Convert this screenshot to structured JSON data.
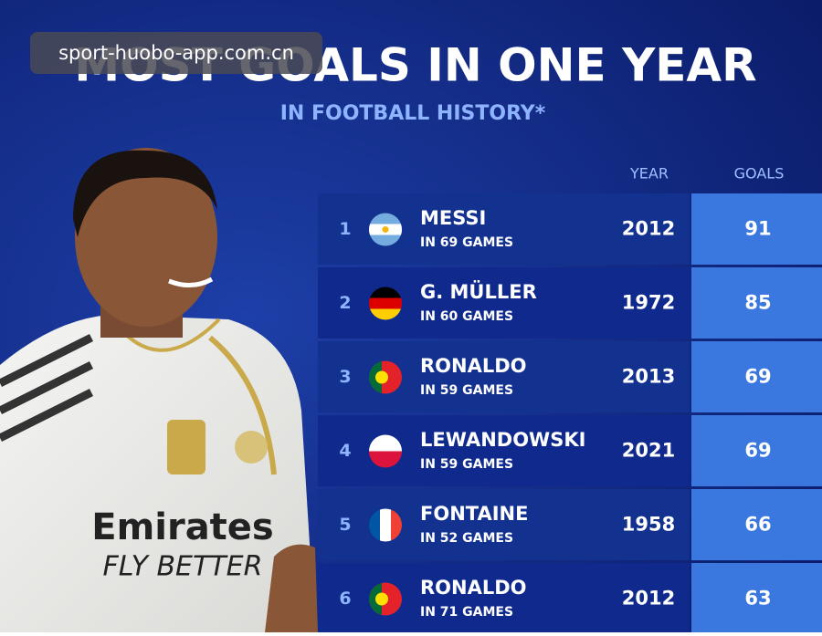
{
  "watermark": "sport-huobo-app.com.cn",
  "header": {
    "title": "MOST GOALS IN ONE YEAR",
    "subtitle": "IN FOOTBALL HISTORY*"
  },
  "table": {
    "columns": [
      "YEAR",
      "GOALS"
    ],
    "rows": [
      {
        "rank": 1,
        "name": "MESSI",
        "games": "IN 69 GAMES",
        "year": 2012,
        "goals": 91
      },
      {
        "rank": 2,
        "name": "G. MÜLLER",
        "games": "IN 60 GAMES",
        "year": 1972,
        "goals": 85
      },
      {
        "rank": 3,
        "name": "RONALDO",
        "games": "IN 59 GAMES",
        "year": 2013,
        "goals": 69
      },
      {
        "rank": 4,
        "name": "LEWANDOWSKI",
        "games": "IN 59 GAMES",
        "year": 2021,
        "goals": 69
      },
      {
        "rank": 5,
        "name": "FONTAINE",
        "games": "IN 52 GAMES",
        "year": 1958,
        "goals": 66
      },
      {
        "rank": 6,
        "name": "RONALDO",
        "games": "IN 71 GAMES",
        "year": 2012,
        "goals": 63
      }
    ]
  }
}
